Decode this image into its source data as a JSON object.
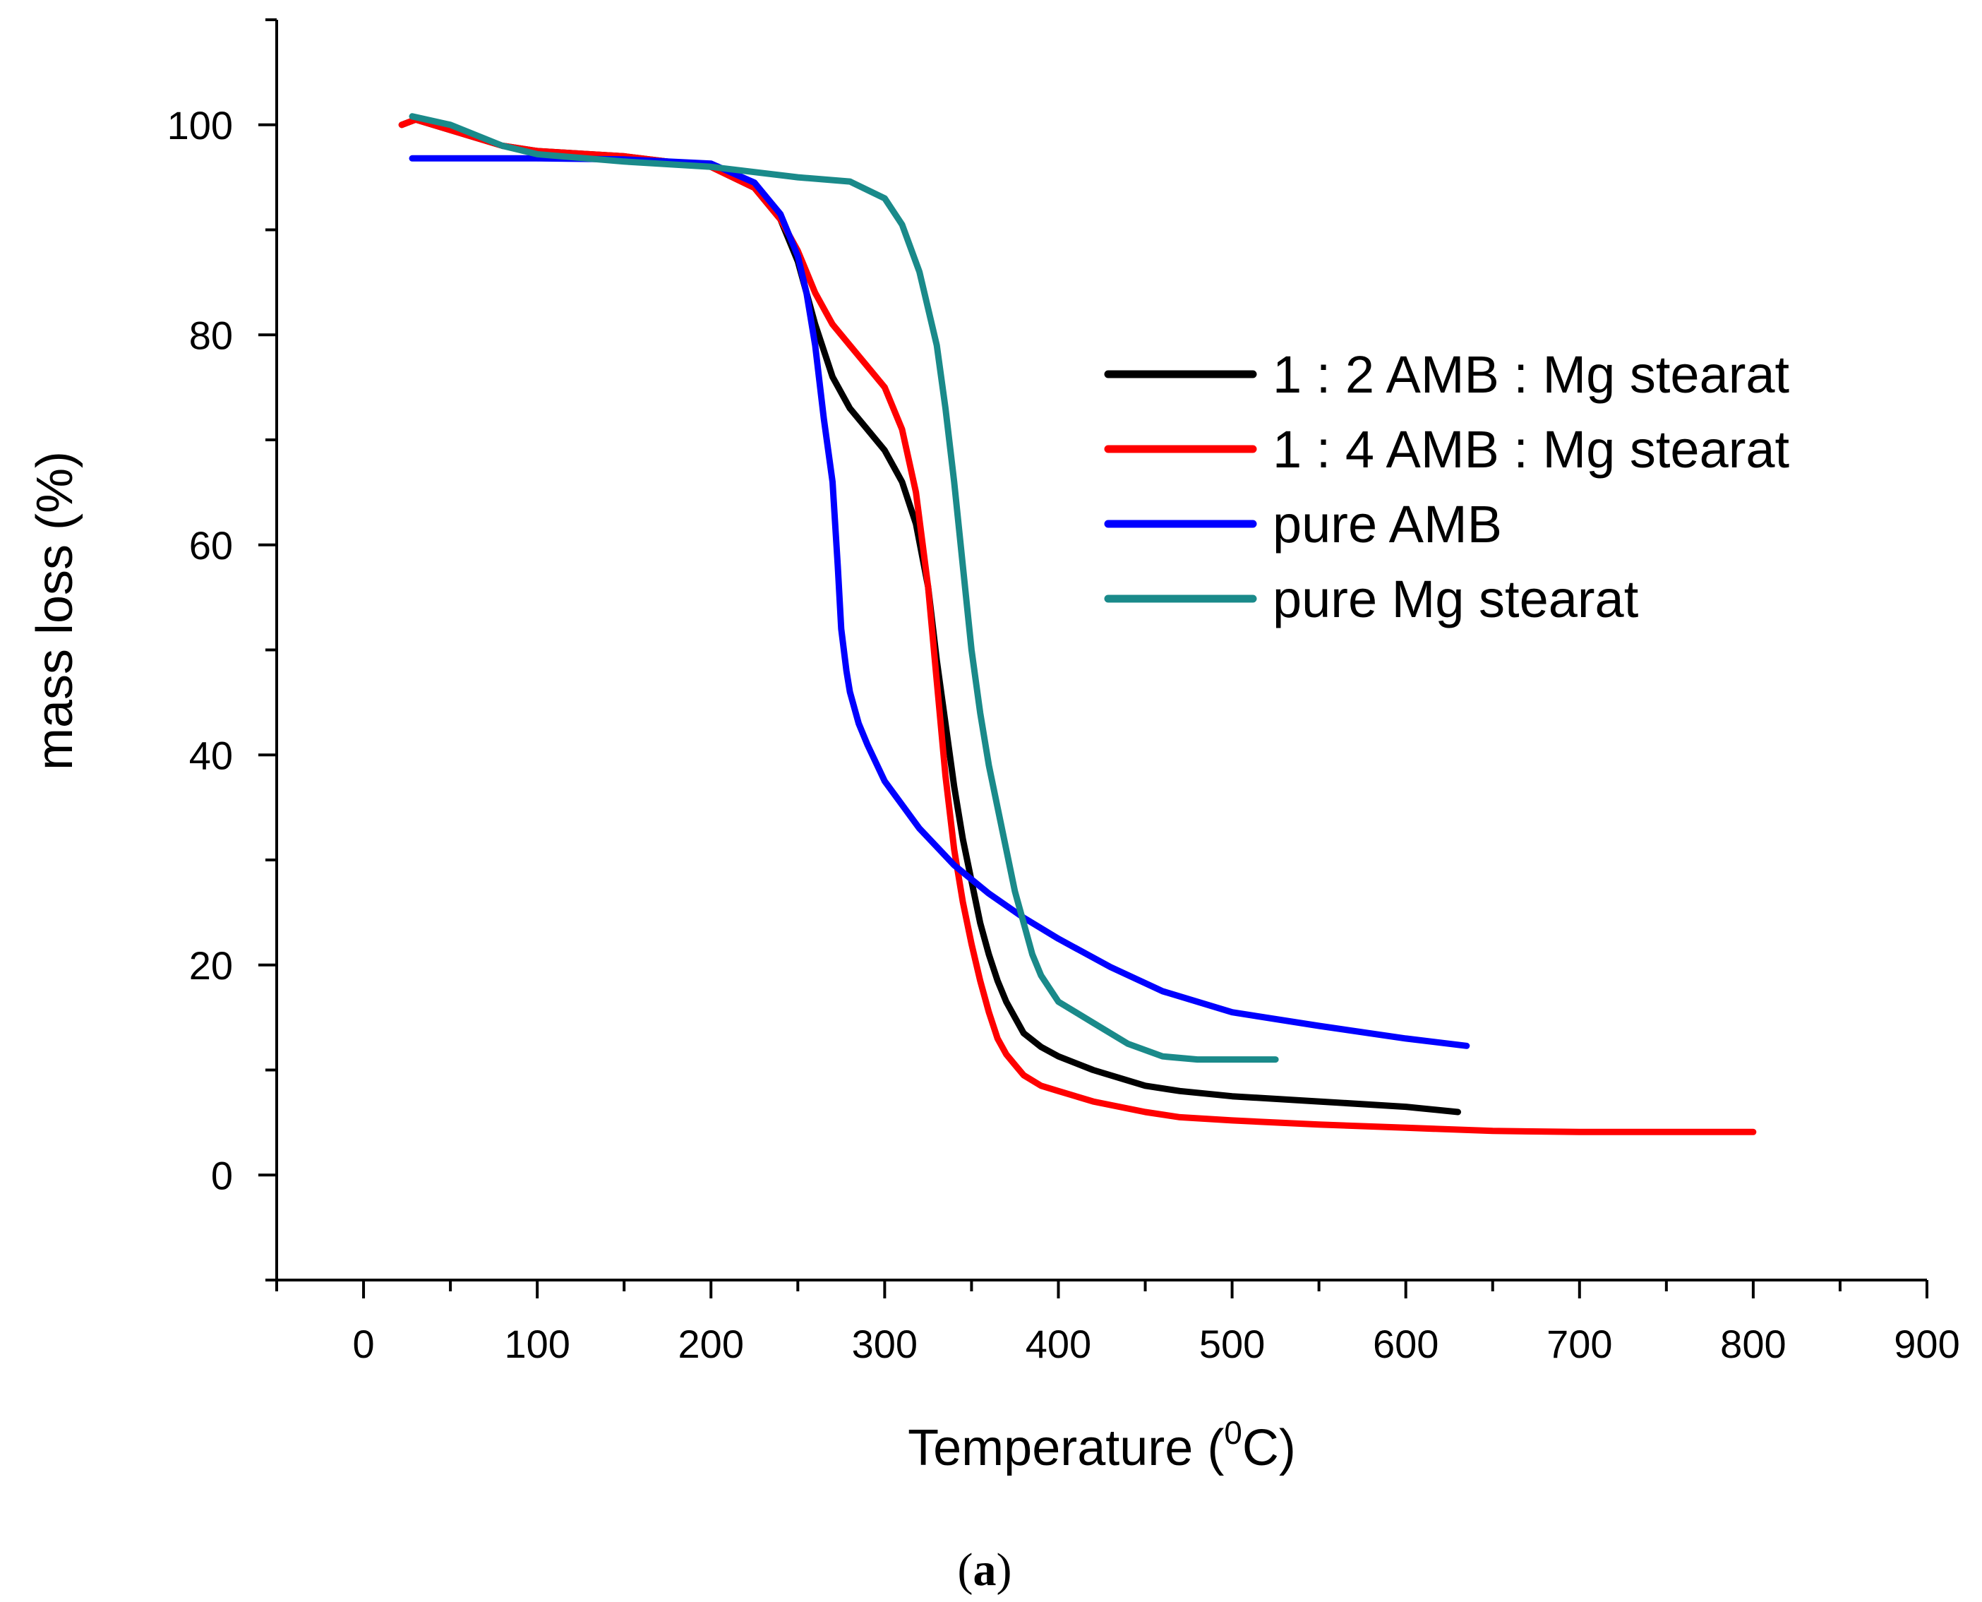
{
  "chart_data": {
    "type": "line",
    "title": "",
    "xlabel": "Temperature (",
    "xlabel_sup": "0",
    "xlabel_tail": "C)",
    "ylabel": "mass loss (%)",
    "xlim": [
      -50,
      900
    ],
    "ylim": [
      -10,
      110
    ],
    "x_ticks": [
      0,
      100,
      200,
      300,
      400,
      500,
      600,
      700,
      800,
      900
    ],
    "y_ticks": [
      0,
      20,
      40,
      60,
      80,
      100
    ],
    "grid": false,
    "legend_position": "right-center",
    "series": [
      {
        "name": "1 : 2 AMB : Mg stearat",
        "color": "#000000",
        "x": [
          22,
          30,
          50,
          80,
          100,
          150,
          200,
          225,
          240,
          250,
          260,
          270,
          280,
          290,
          300,
          310,
          318,
          325,
          330,
          335,
          340,
          345,
          350,
          355,
          360,
          365,
          370,
          375,
          380,
          390,
          400,
          420,
          450,
          470,
          500,
          550,
          600,
          630
        ],
        "values": [
          100,
          100.5,
          99.5,
          98,
          97.5,
          97,
          96,
          94,
          91,
          87,
          81,
          76,
          73,
          71,
          69,
          66,
          62,
          56,
          49,
          43,
          37,
          32,
          28,
          24,
          21,
          18.5,
          16.5,
          15,
          13.5,
          12.2,
          11.3,
          10,
          8.5,
          8,
          7.5,
          7,
          6.5,
          6
        ]
      },
      {
        "name": "1 : 4 AMB : Mg stearat",
        "color": "#ff0000",
        "x": [
          22,
          30,
          50,
          80,
          100,
          150,
          200,
          225,
          240,
          250,
          260,
          270,
          280,
          290,
          300,
          310,
          318,
          325,
          330,
          335,
          340,
          345,
          350,
          355,
          360,
          365,
          370,
          375,
          380,
          390,
          400,
          420,
          450,
          470,
          500,
          550,
          600,
          650,
          700,
          750,
          800
        ],
        "values": [
          100,
          100.5,
          99.5,
          98,
          97.5,
          97,
          96,
          94,
          91,
          88,
          84,
          81,
          79,
          77,
          75,
          71,
          65,
          56,
          47,
          38,
          31,
          26,
          22,
          18.5,
          15.5,
          13,
          11.5,
          10.5,
          9.5,
          8.5,
          8,
          7,
          6,
          5.5,
          5.2,
          4.8,
          4.5,
          4.2,
          4.1,
          4.1,
          4.1
        ]
      },
      {
        "name": "pure AMB",
        "color": "#0000ff",
        "x": [
          28,
          50,
          100,
          150,
          200,
          225,
          240,
          250,
          255,
          260,
          265,
          270,
          273,
          275,
          278,
          280,
          285,
          290,
          300,
          320,
          340,
          360,
          380,
          400,
          430,
          460,
          500,
          550,
          600,
          635
        ],
        "values": [
          96.8,
          96.8,
          96.8,
          96.7,
          96.3,
          94.5,
          91.5,
          87.5,
          84,
          79,
          72,
          66,
          58,
          52,
          48,
          46,
          43,
          41,
          37.5,
          33,
          29.5,
          26.8,
          24.5,
          22.5,
          19.8,
          17.5,
          15.5,
          14.2,
          13,
          12.3
        ]
      },
      {
        "name": "pure Mg stearat",
        "color": "#1a8a8a",
        "x": [
          28,
          50,
          80,
          100,
          150,
          200,
          250,
          280,
          300,
          310,
          320,
          330,
          335,
          340,
          345,
          350,
          355,
          360,
          365,
          370,
          375,
          380,
          385,
          390,
          400,
          420,
          440,
          460,
          480,
          500,
          525
        ],
        "values": [
          100.8,
          100,
          98,
          97.2,
          96.5,
          96,
          95,
          94.6,
          93,
          90.5,
          86,
          79,
          73,
          66,
          58,
          50,
          44,
          39,
          35,
          31,
          27,
          24,
          21,
          19,
          16.5,
          14.5,
          12.5,
          11.3,
          11,
          11,
          11
        ]
      }
    ],
    "caption_letter": "a"
  }
}
